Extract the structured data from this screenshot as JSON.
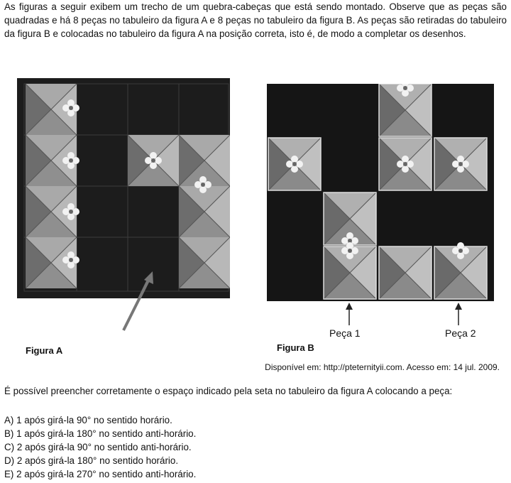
{
  "intro": "As figuras a seguir exibem um trecho de um quebra-cabeças que está sendo montado. Observe que as peças são quadradas e há 8 peças no tabuleiro da figura A e 8 peças no tabuleiro da figura B. As peças são retiradas do tabuleiro da figura B e colocadas no tabuleiro da figura A na posição correta, isto é, de modo a completar os desenhos.",
  "figure_a": {
    "caption": "Figura A"
  },
  "figure_b": {
    "caption": "Figura B",
    "piece1": "Peça 1",
    "piece2": "Peça 2"
  },
  "source": "Disponível em: http://pteternityii.com. Acesso em: 14 jul. 2009.",
  "question": "É possível preencher corretamente o espaço indicado pela seta no tabuleiro da figura A colocando a peça:",
  "options": [
    "A) 1 após girá-la 90° no sentido horário.",
    "B) 1 após girá-la 180° no sentido anti-horário.",
    "C) 2 após girá-la 90° no sentido anti-horário.",
    "D) 2 após girá-la 180° no sentido horário.",
    "E) 2 após girá-la 270° no sentido anti-horário."
  ]
}
